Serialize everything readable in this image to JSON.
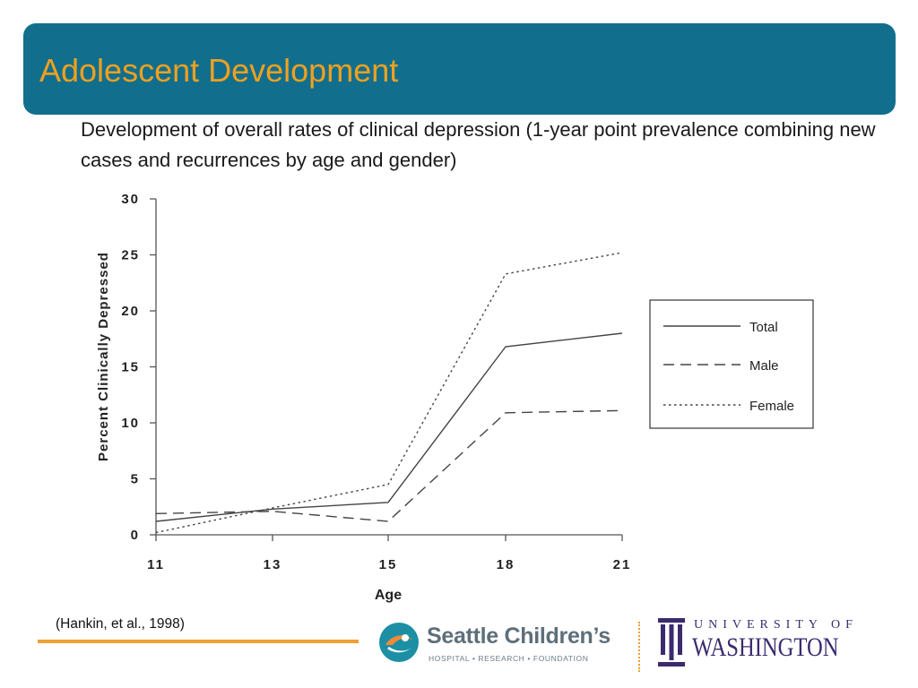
{
  "slide": {
    "title": "Adolescent Development",
    "subtitle": "Development of overall rates of clinical depression (1-year point prevalence combining new cases and recurrences by age and gender)",
    "citation": "(Hankin, et al., 1998)"
  },
  "logos": {
    "seattle_childrens": {
      "name": "Seattle Children’s",
      "tagline": "HOSPITAL • RESEARCH • FOUNDATION"
    },
    "uw": {
      "line1": "UNIVERSITY OF",
      "line2": "WASHINGTON"
    }
  },
  "colors": {
    "title_banner": "#116f8d",
    "title_text": "#f0a020",
    "accent_rule": "#f0a030",
    "sch_teal": "#1c8fa5",
    "sch_orange": "#f08a3a",
    "uw_purple": "#3b2b6e"
  },
  "chart_data": {
    "type": "line",
    "categories": [
      "11",
      "13",
      "15",
      "18",
      "21"
    ],
    "xlabel": "Age",
    "ylabel": "Percent Clinically Depressed",
    "ylim": [
      0,
      30
    ],
    "yticks": [
      0,
      5,
      10,
      15,
      20,
      25,
      30
    ],
    "grid": false,
    "legend_position": "right",
    "series": [
      {
        "name": "Total",
        "style": "solid",
        "values": [
          1.2,
          2.3,
          2.9,
          16.8,
          18.0
        ]
      },
      {
        "name": "Male",
        "style": "dashed",
        "values": [
          1.9,
          2.1,
          1.2,
          10.9,
          11.1
        ]
      },
      {
        "name": "Female",
        "style": "dotted",
        "values": [
          0.2,
          2.4,
          4.5,
          23.3,
          25.2
        ]
      }
    ]
  }
}
